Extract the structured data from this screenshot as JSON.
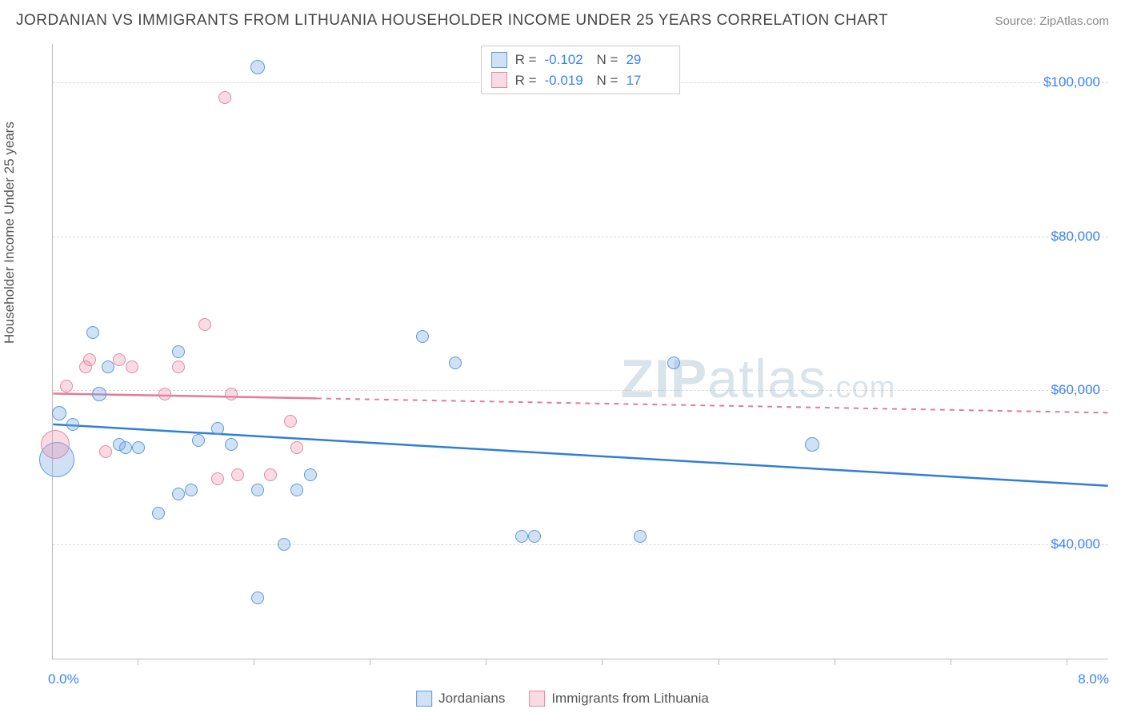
{
  "title": "JORDANIAN VS IMMIGRANTS FROM LITHUANIA HOUSEHOLDER INCOME UNDER 25 YEARS CORRELATION CHART",
  "source_label": "Source: ZipAtlas.com",
  "y_axis_label": "Householder Income Under 25 years",
  "x_axis": {
    "min": 0.0,
    "max": 8.0,
    "label_left": "0.0%",
    "label_right": "8.0%",
    "ticks_pct": [
      8,
      19,
      30,
      41,
      52,
      63,
      74,
      85,
      96
    ]
  },
  "y_axis": {
    "min": 25000,
    "max": 105000,
    "ticks": [
      {
        "value": 40000,
        "label": "$40,000"
      },
      {
        "value": 60000,
        "label": "$60,000"
      },
      {
        "value": 80000,
        "label": "$80,000"
      },
      {
        "value": 100000,
        "label": "$100,000"
      }
    ]
  },
  "series": [
    {
      "id": "jordanians",
      "name": "Jordanians",
      "fill": "rgba(120,170,230,0.35)",
      "stroke": "#5a9bd8",
      "line_color": "#2f7ed8",
      "line_dash": "none",
      "R": "-0.102",
      "N": "29",
      "trend": {
        "y_at_xmin": 55500,
        "y_at_xmax": 47500
      },
      "points": [
        {
          "x": 0.03,
          "y": 51000,
          "r": 22
        },
        {
          "x": 0.05,
          "y": 57000,
          "r": 9
        },
        {
          "x": 0.15,
          "y": 55500,
          "r": 8
        },
        {
          "x": 0.35,
          "y": 59500,
          "r": 9
        },
        {
          "x": 0.3,
          "y": 67500,
          "r": 8
        },
        {
          "x": 0.42,
          "y": 63000,
          "r": 8
        },
        {
          "x": 0.5,
          "y": 53000,
          "r": 8
        },
        {
          "x": 0.55,
          "y": 52500,
          "r": 8
        },
        {
          "x": 0.65,
          "y": 52500,
          "r": 8
        },
        {
          "x": 0.8,
          "y": 44000,
          "r": 8
        },
        {
          "x": 0.95,
          "y": 65000,
          "r": 8
        },
        {
          "x": 0.95,
          "y": 46500,
          "r": 8
        },
        {
          "x": 1.05,
          "y": 47000,
          "r": 8
        },
        {
          "x": 1.1,
          "y": 53500,
          "r": 8
        },
        {
          "x": 1.25,
          "y": 55000,
          "r": 8
        },
        {
          "x": 1.35,
          "y": 53000,
          "r": 8
        },
        {
          "x": 1.55,
          "y": 47000,
          "r": 8
        },
        {
          "x": 1.55,
          "y": 102000,
          "r": 9
        },
        {
          "x": 1.55,
          "y": 33000,
          "r": 8
        },
        {
          "x": 1.75,
          "y": 40000,
          "r": 8
        },
        {
          "x": 1.85,
          "y": 47000,
          "r": 8
        },
        {
          "x": 1.95,
          "y": 49000,
          "r": 8
        },
        {
          "x": 2.8,
          "y": 67000,
          "r": 8
        },
        {
          "x": 3.05,
          "y": 63500,
          "r": 8
        },
        {
          "x": 3.55,
          "y": 41000,
          "r": 8
        },
        {
          "x": 3.65,
          "y": 41000,
          "r": 8
        },
        {
          "x": 4.45,
          "y": 41000,
          "r": 8
        },
        {
          "x": 4.7,
          "y": 63500,
          "r": 8
        },
        {
          "x": 5.75,
          "y": 53000,
          "r": 9
        }
      ]
    },
    {
      "id": "lithuania",
      "name": "Immigrants from Lithuania",
      "fill": "rgba(240,150,175,0.35)",
      "stroke": "#e08ba4",
      "line_color": "#e47a98",
      "line_dash": "dashed",
      "R": "-0.019",
      "N": "17",
      "trend": {
        "y_at_xmin": 59500,
        "y_at_xmax": 57000
      },
      "trend_solid_until_x": 2.0,
      "points": [
        {
          "x": 0.02,
          "y": 53000,
          "r": 18
        },
        {
          "x": 0.1,
          "y": 60500,
          "r": 8
        },
        {
          "x": 0.25,
          "y": 63000,
          "r": 8
        },
        {
          "x": 0.28,
          "y": 64000,
          "r": 8
        },
        {
          "x": 0.4,
          "y": 52000,
          "r": 8
        },
        {
          "x": 0.5,
          "y": 64000,
          "r": 8
        },
        {
          "x": 0.6,
          "y": 63000,
          "r": 8
        },
        {
          "x": 0.85,
          "y": 59500,
          "r": 8
        },
        {
          "x": 0.95,
          "y": 63000,
          "r": 8
        },
        {
          "x": 1.15,
          "y": 68500,
          "r": 8
        },
        {
          "x": 1.25,
          "y": 48500,
          "r": 8
        },
        {
          "x": 1.3,
          "y": 98000,
          "r": 8
        },
        {
          "x": 1.35,
          "y": 59500,
          "r": 8
        },
        {
          "x": 1.4,
          "y": 49000,
          "r": 8
        },
        {
          "x": 1.65,
          "y": 49000,
          "r": 8
        },
        {
          "x": 1.8,
          "y": 56000,
          "r": 8
        },
        {
          "x": 1.85,
          "y": 52500,
          "r": 8
        }
      ]
    }
  ],
  "stats_labels": {
    "R": "R =",
    "N": "N ="
  },
  "watermark": {
    "bold": "ZIP",
    "rest": "atlas",
    "suffix": ".com"
  },
  "colors": {
    "blue_text": "#3b82f6",
    "grid": "#dddddd",
    "axis": "#bbbbbb"
  }
}
